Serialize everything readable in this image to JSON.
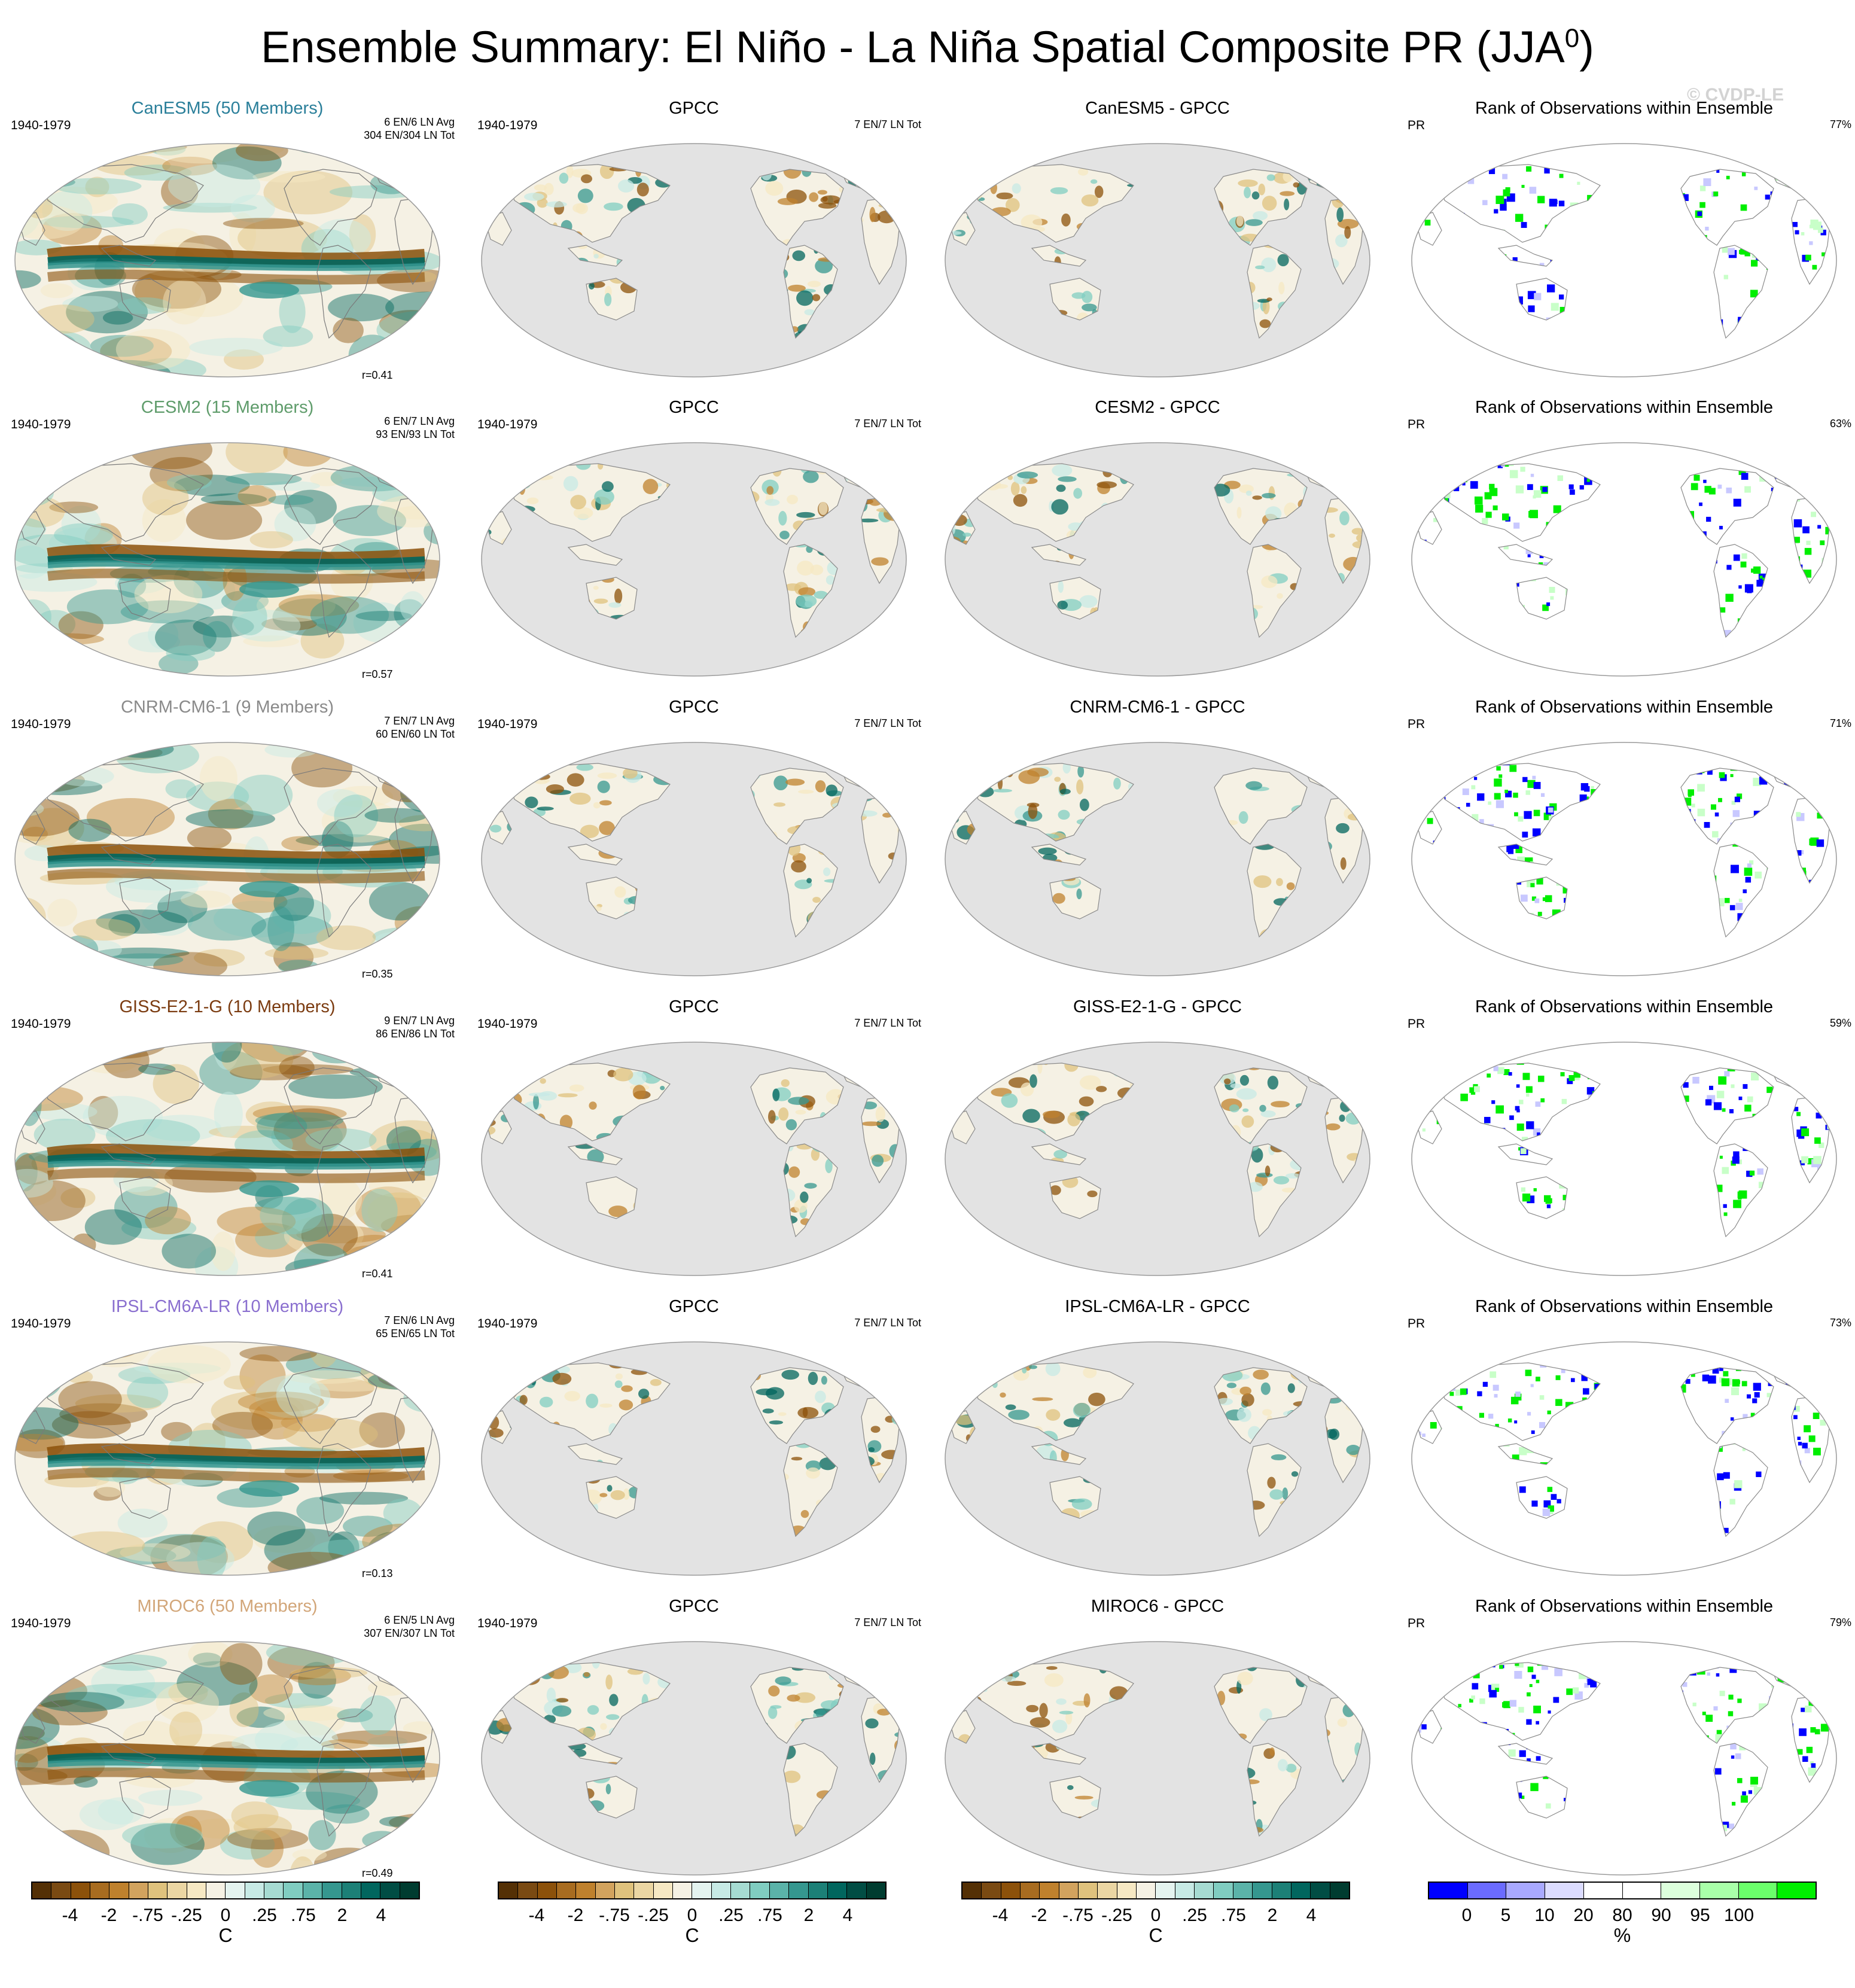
{
  "figure": {
    "title": "Ensemble Summary: El Niño - La Niña Spatial Composite PR (JJA",
    "title_sup": "0",
    "title_close": ")",
    "copyright": "© CVDP-LE"
  },
  "rows": [
    {
      "model": {
        "title": "CanESM5 (50 Members)",
        "color": "#2a7f9a",
        "period": "1940-1979",
        "counts": [
          "6 EN/6 LN Avg",
          "304 EN/304 LN Tot"
        ],
        "r": "r=0.41"
      },
      "obs": {
        "title": "GPCC",
        "period": "1940-1979",
        "counts": "7 EN/7 LN Tot"
      },
      "diff": {
        "title": "CanESM5 - GPCC"
      },
      "rank": {
        "title": "Rank of Observations within Ensemble",
        "var": "PR",
        "pct": "77%"
      }
    },
    {
      "model": {
        "title": "CESM2 (15 Members)",
        "color": "#5f9c6b",
        "period": "1940-1979",
        "counts": [
          "6 EN/7 LN Avg",
          "93 EN/93 LN Tot"
        ],
        "r": "r=0.57"
      },
      "obs": {
        "title": "GPCC",
        "period": "1940-1979",
        "counts": "7 EN/7 LN Tot"
      },
      "diff": {
        "title": "CESM2 - GPCC"
      },
      "rank": {
        "title": "Rank of Observations within Ensemble",
        "var": "PR",
        "pct": "63%"
      }
    },
    {
      "model": {
        "title": "CNRM-CM6-1 (9 Members)",
        "color": "#8a8a8a",
        "period": "1940-1979",
        "counts": [
          "7 EN/7 LN Avg",
          "60 EN/60 LN Tot"
        ],
        "r": "r=0.35"
      },
      "obs": {
        "title": "GPCC",
        "period": "1940-1979",
        "counts": "7 EN/7 LN Tot"
      },
      "diff": {
        "title": "CNRM-CM6-1 - GPCC"
      },
      "rank": {
        "title": "Rank of Observations within Ensemble",
        "var": "PR",
        "pct": "71%"
      }
    },
    {
      "model": {
        "title": "GISS-E2-1-G (10 Members)",
        "color": "#7b3b10",
        "period": "1940-1979",
        "counts": [
          "9 EN/7 LN Avg",
          "86 EN/86 LN Tot"
        ],
        "r": "r=0.41"
      },
      "obs": {
        "title": "GPCC",
        "period": "1940-1979",
        "counts": "7 EN/7 LN Tot"
      },
      "diff": {
        "title": "GISS-E2-1-G - GPCC"
      },
      "rank": {
        "title": "Rank of Observations within Ensemble",
        "var": "PR",
        "pct": "59%"
      }
    },
    {
      "model": {
        "title": "IPSL-CM6A-LR (10 Members)",
        "color": "#8a6fcf",
        "period": "1940-1979",
        "counts": [
          "7 EN/6 LN Avg",
          "65 EN/65 LN Tot"
        ],
        "r": "r=0.13"
      },
      "obs": {
        "title": "GPCC",
        "period": "1940-1979",
        "counts": "7 EN/7 LN Tot"
      },
      "diff": {
        "title": "IPSL-CM6A-LR - GPCC"
      },
      "rank": {
        "title": "Rank of Observations within Ensemble",
        "var": "PR",
        "pct": "73%"
      }
    },
    {
      "model": {
        "title": "MIROC6 (50 Members)",
        "color": "#d2a679",
        "period": "1940-1979",
        "counts": [
          "6 EN/5 LN Avg",
          "307 EN/307 LN Tot"
        ],
        "r": "r=0.49"
      },
      "obs": {
        "title": "GPCC",
        "period": "1940-1979",
        "counts": "7 EN/7 LN Tot"
      },
      "diff": {
        "title": "MIROC6 - GPCC"
      },
      "rank": {
        "title": "Rank of Observations within Ensemble",
        "var": "PR",
        "pct": "79%"
      }
    }
  ],
  "colorbars": [
    {
      "unit": "C",
      "ticks": [
        "-4",
        "-2",
        "-.75",
        "-.25",
        "0",
        ".25",
        ".75",
        "2",
        "4"
      ],
      "colors": [
        "#543005",
        "#7a4a12",
        "#8c510a",
        "#a86c20",
        "#bf812d",
        "#d2a35e",
        "#dfc27d",
        "#ebd6a3",
        "#f6e8c3",
        "#f5f1e4",
        "#e4f3ef",
        "#c7eae5",
        "#a6dbd2",
        "#80cdc1",
        "#5bb3a9",
        "#35978f",
        "#1c8077",
        "#01665e",
        "#014d44",
        "#003c30"
      ]
    },
    {
      "unit": "C",
      "ticks": [
        "-4",
        "-2",
        "-.75",
        "-.25",
        "0",
        ".25",
        ".75",
        "2",
        "4"
      ],
      "colors": [
        "#543005",
        "#7a4a12",
        "#8c510a",
        "#a86c20",
        "#bf812d",
        "#d2a35e",
        "#dfc27d",
        "#ebd6a3",
        "#f6e8c3",
        "#f5f1e4",
        "#e4f3ef",
        "#c7eae5",
        "#a6dbd2",
        "#80cdc1",
        "#5bb3a9",
        "#35978f",
        "#1c8077",
        "#01665e",
        "#014d44",
        "#003c30"
      ]
    },
    {
      "unit": "C",
      "ticks": [
        "-4",
        "-2",
        "-.75",
        "-.25",
        "0",
        ".25",
        ".75",
        "2",
        "4"
      ],
      "colors": [
        "#543005",
        "#7a4a12",
        "#8c510a",
        "#a86c20",
        "#bf812d",
        "#d2a35e",
        "#dfc27d",
        "#ebd6a3",
        "#f6e8c3",
        "#f5f1e4",
        "#e4f3ef",
        "#c7eae5",
        "#a6dbd2",
        "#80cdc1",
        "#5bb3a9",
        "#35978f",
        "#1c8077",
        "#01665e",
        "#014d44",
        "#003c30"
      ]
    },
    {
      "unit": "%",
      "ticks": [
        "0",
        "5",
        "10",
        "20",
        "80",
        "90",
        "95",
        "100"
      ],
      "colors": [
        "#0000ff",
        "#6b6bff",
        "#a9a9ff",
        "#dcdcff",
        "#ffffff",
        "#ffffff",
        "#dcffdc",
        "#a9ffa9",
        "#6bff6b",
        "#00ee00"
      ]
    }
  ],
  "colors": {
    "land_mask": "#e3e3e3",
    "coast": "#8a8a8a",
    "rank_low": "#0000ff",
    "rank_high": "#00ee00"
  }
}
